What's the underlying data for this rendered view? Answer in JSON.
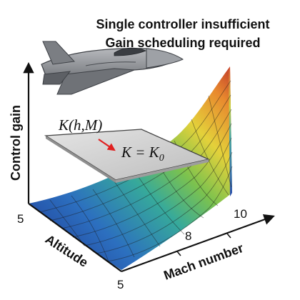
{
  "title_line1": "Single controller insufficient",
  "title_line2": "Gain scheduling required",
  "axes": {
    "vertical_label": "Control gain",
    "left_label": "Altitude",
    "right_label": "Mach number",
    "left_ticks": [
      "5",
      "5"
    ],
    "right_ticks": [
      "8",
      "10"
    ]
  },
  "plane_labels": {
    "scheduled_gain": "K(h,M)",
    "fixed_gain": "K = K",
    "fixed_gain_subscript": "0"
  },
  "colors": {
    "surface_low": "#2a3f9e",
    "surface_mid_low": "#2f8fc8",
    "surface_mid": "#3fb37a",
    "surface_mid_high": "#e6d23a",
    "surface_high": "#c63b2a",
    "plane_fill": "#d5d5d5",
    "plane_edge": "#444444",
    "arrow_red": "#e02020",
    "axis": "#111111",
    "aircraft_body": "#8d8f93",
    "aircraft_dark": "#3f4247"
  },
  "icons": {
    "aircraft": "jet-aircraft-icon"
  }
}
